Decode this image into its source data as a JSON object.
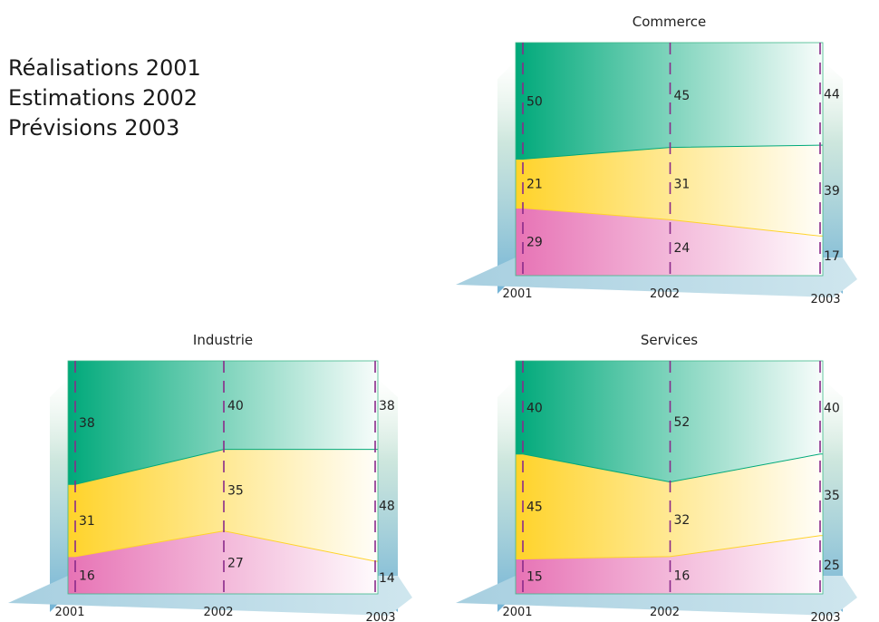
{
  "legend_lines": [
    "Réalisations 2001",
    "Estimations 2002",
    "Prévisions 2003"
  ],
  "colors": {
    "top": "#00a97a",
    "middle": "#ffd32a",
    "bottom": "#e773b5",
    "divider": "#8a2a8a",
    "shadow": "#5aa6cf"
  },
  "chart_data": [
    {
      "type": "area",
      "stacked": true,
      "normalized_percent": true,
      "title": "Commerce",
      "categories": [
        "2001",
        "2002",
        "2003"
      ],
      "series": [
        {
          "values": [
            29,
            24,
            17
          ]
        },
        {
          "values": [
            21,
            31,
            39
          ]
        },
        {
          "values": [
            50,
            45,
            44
          ]
        }
      ],
      "ylim": [
        0,
        100
      ]
    },
    {
      "type": "area",
      "stacked": true,
      "normalized_percent": true,
      "title": "Industrie",
      "categories": [
        "2001",
        "2002",
        "2003"
      ],
      "series": [
        {
          "values": [
            16,
            27,
            14
          ]
        },
        {
          "values": [
            31,
            35,
            48
          ]
        },
        {
          "values": [
            38,
            40,
            38
          ]
        }
      ],
      "ylim": [
        0,
        100
      ]
    },
    {
      "type": "area",
      "stacked": true,
      "normalized_percent": true,
      "title": "Services",
      "categories": [
        "2001",
        "2002",
        "2003"
      ],
      "series": [
        {
          "values": [
            15,
            16,
            25
          ]
        },
        {
          "values": [
            45,
            32,
            35
          ]
        },
        {
          "values": [
            40,
            52,
            40
          ]
        }
      ],
      "ylim": [
        0,
        100
      ]
    }
  ]
}
